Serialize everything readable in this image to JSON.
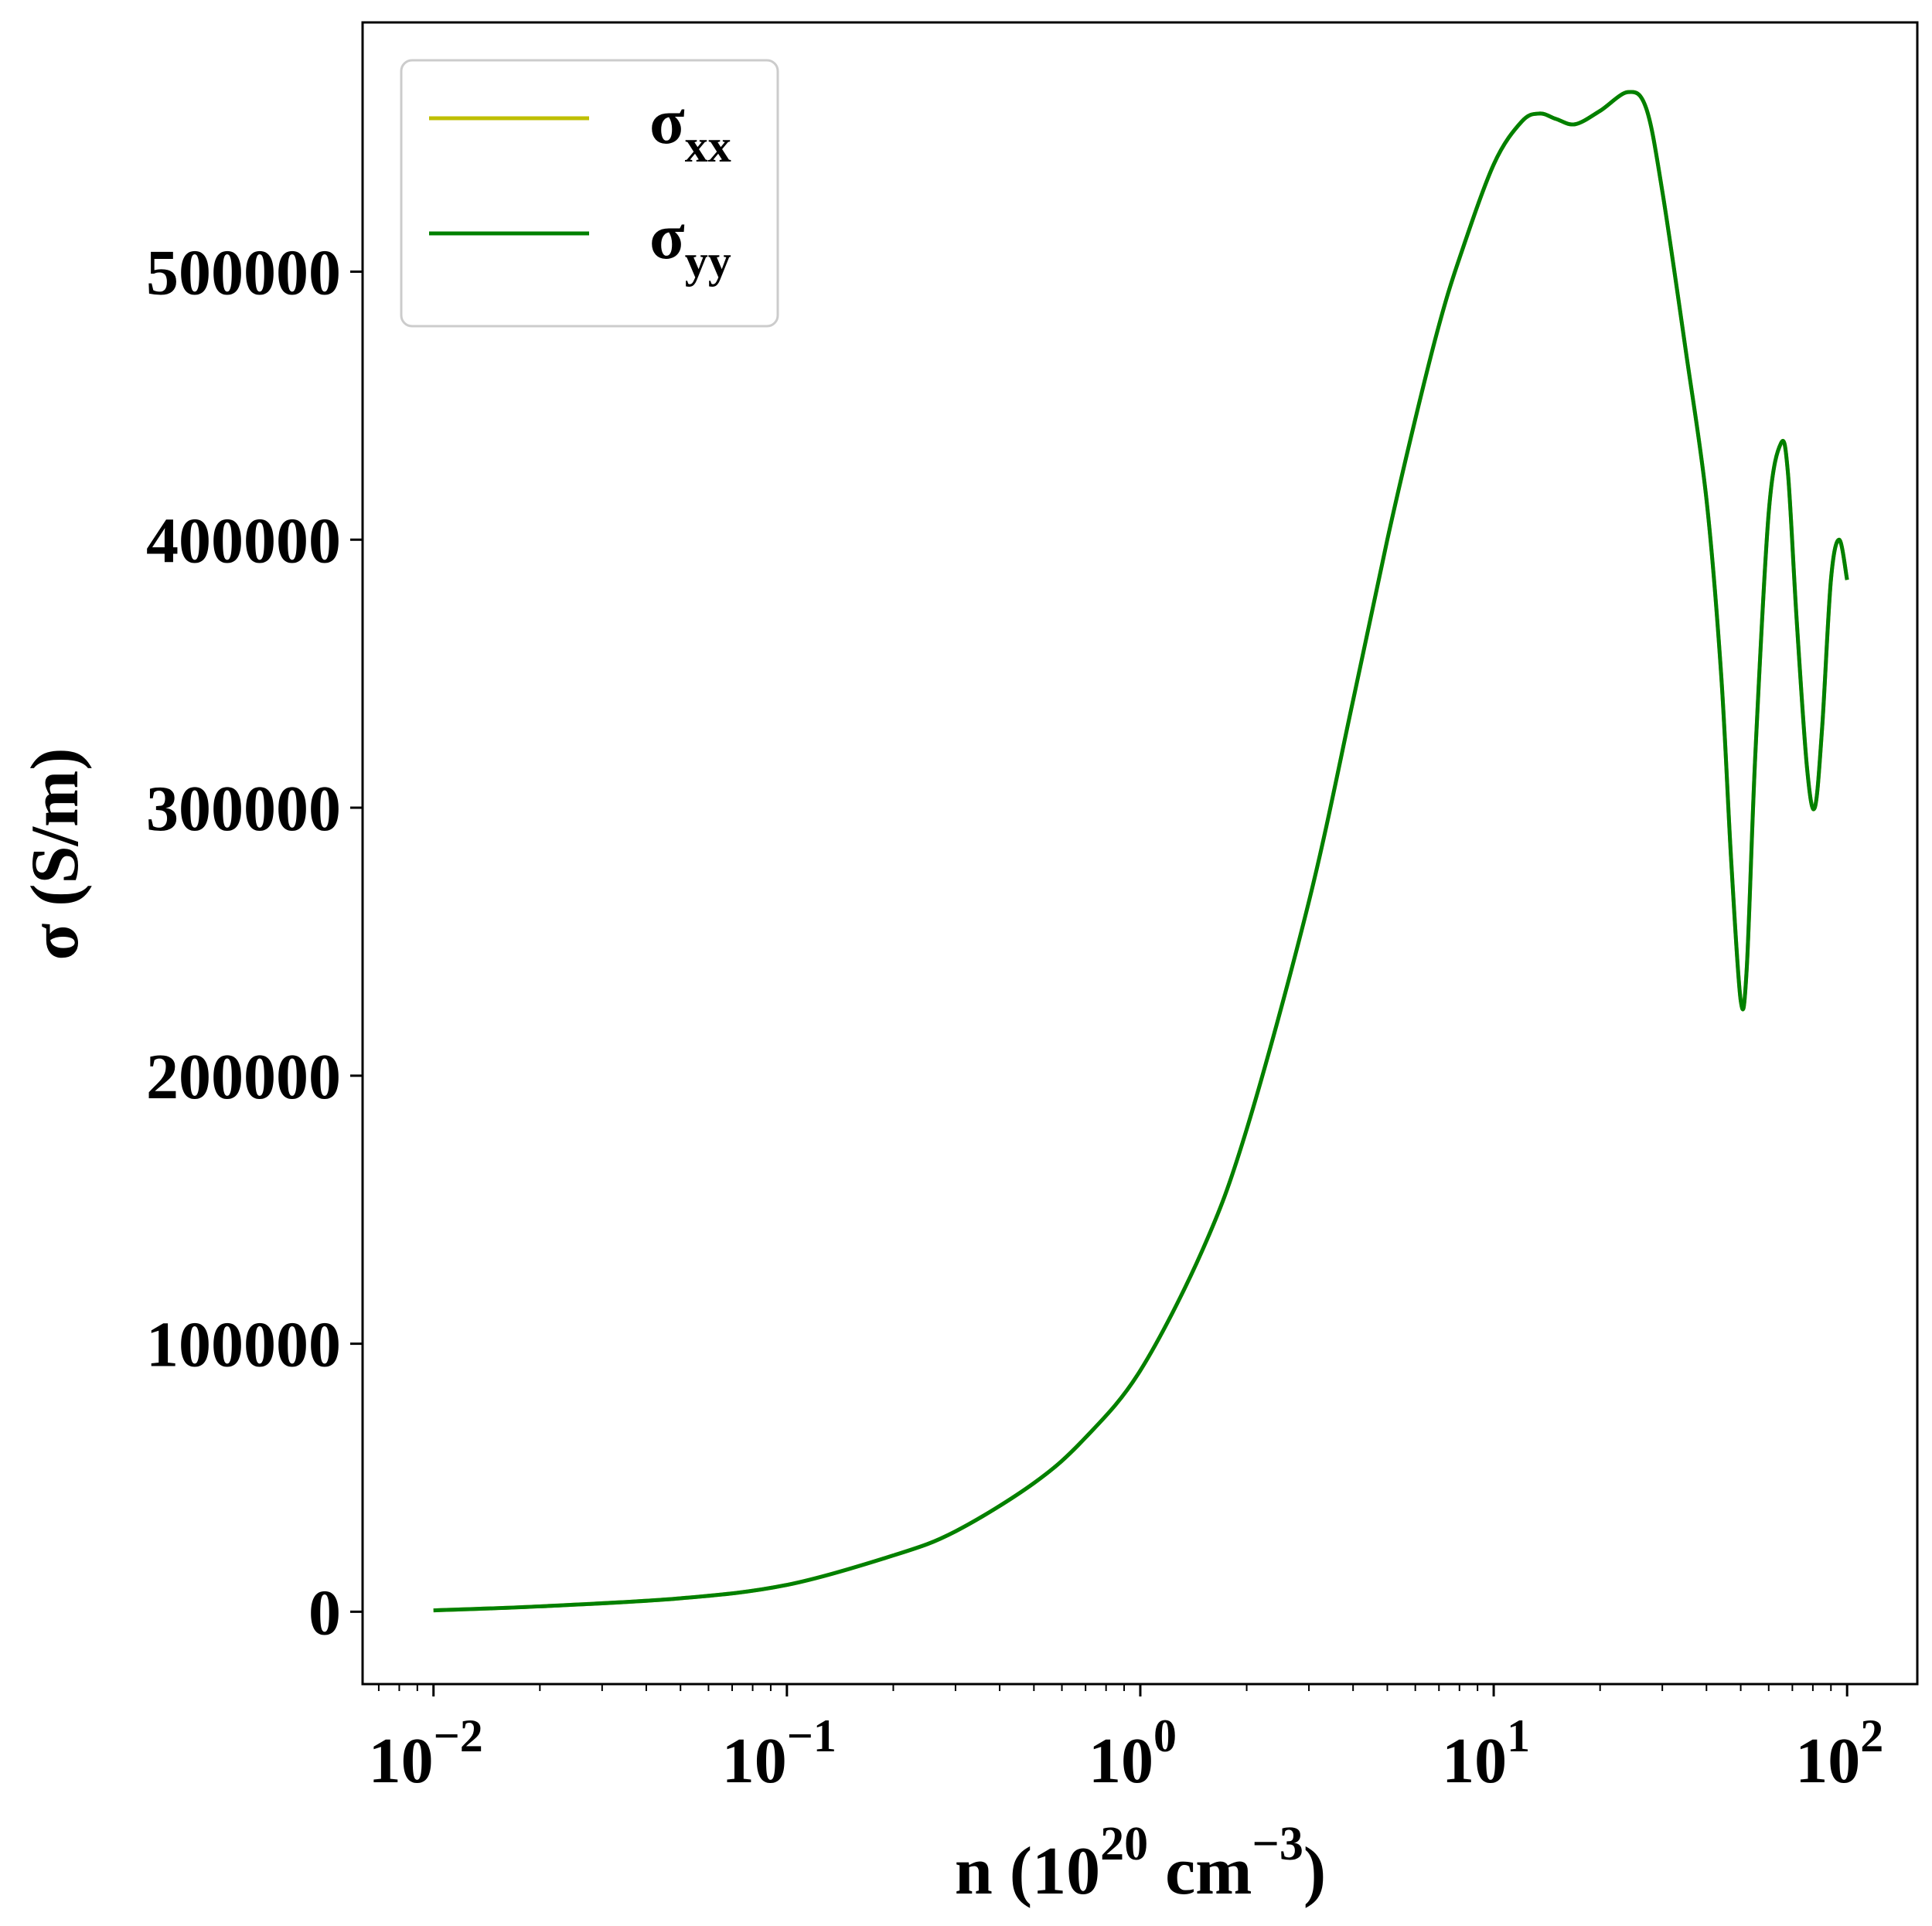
{
  "chart_data": {
    "type": "line",
    "x_scale": "log",
    "xlim": [
      0.0063,
      158
    ],
    "ylim": [
      -27000,
      593000
    ],
    "grid": false,
    "legend_position": "top-left",
    "xlabel": {
      "main": "n (10",
      "sup1": "20",
      "mid": " cm",
      "sup2": "−3",
      "end": ")"
    },
    "ylabel": "σ (S/m)",
    "x_ticks": [
      {
        "value": 0.01,
        "base": "10",
        "exp": "−2"
      },
      {
        "value": 0.1,
        "base": "10",
        "exp": "−1"
      },
      {
        "value": 1,
        "base": "10",
        "exp": "0"
      },
      {
        "value": 10,
        "base": "10",
        "exp": "1"
      },
      {
        "value": 100,
        "base": "10",
        "exp": "2"
      }
    ],
    "y_ticks": [
      {
        "value": 0,
        "label": "0"
      },
      {
        "value": 100000,
        "label": "100000"
      },
      {
        "value": 200000,
        "label": "200000"
      },
      {
        "value": 300000,
        "label": "300000"
      },
      {
        "value": 400000,
        "label": "400000"
      },
      {
        "value": 500000,
        "label": "500000"
      }
    ],
    "series": [
      {
        "name": "σxx",
        "legend_main": "σ",
        "legend_sub": "xx",
        "color": "#bfbf00",
        "x": [
          0.01,
          0.02,
          0.05,
          0.1,
          0.2,
          0.3,
          0.5,
          0.7,
          1.0,
          1.5,
          2.0,
          3.0,
          4.0,
          5.0,
          6.0,
          7.0,
          8.0,
          10.0,
          12.0,
          13.5,
          15.0,
          17.0,
          20.0,
          24.0,
          27.0,
          30.0,
          35.0,
          40.0,
          44.0,
          47.0,
          50.0,
          52.0,
          55.0,
          60.0,
          65.0,
          68.0,
          72.0,
          77.0,
          81.0,
          85.0,
          90.0,
          95.0,
          100.0
        ],
        "values": [
          500,
          2000,
          5000,
          10000,
          21000,
          30000,
          48000,
          65000,
          90000,
          135000,
          180000,
          265000,
          340000,
          400000,
          445000,
          480000,
          505000,
          540000,
          556000,
          559000,
          557000,
          555000,
          560000,
          567000,
          561000,
          530000,
          470000,
          415000,
          350000,
          280000,
          228000,
          240000,
          320000,
          410000,
          436000,
          425000,
          370000,
          315000,
          300000,
          330000,
          385000,
          400000,
          385000
        ]
      },
      {
        "name": "σyy",
        "legend_main": "σ",
        "legend_sub": "yy",
        "color": "#008000",
        "x": [
          0.01,
          0.02,
          0.05,
          0.1,
          0.2,
          0.3,
          0.5,
          0.7,
          1.0,
          1.5,
          2.0,
          3.0,
          4.0,
          5.0,
          6.0,
          7.0,
          8.0,
          10.0,
          12.0,
          13.5,
          15.0,
          17.0,
          20.0,
          24.0,
          27.0,
          30.0,
          35.0,
          40.0,
          44.0,
          47.0,
          50.0,
          52.0,
          55.0,
          60.0,
          65.0,
          68.0,
          72.0,
          77.0,
          81.0,
          85.0,
          90.0,
          95.0,
          100.0
        ],
        "values": [
          500,
          2000,
          5000,
          10000,
          21000,
          30000,
          48000,
          65000,
          90000,
          135000,
          180000,
          265000,
          340000,
          400000,
          445000,
          480000,
          505000,
          540000,
          556000,
          559000,
          557000,
          555000,
          560000,
          567000,
          561000,
          530000,
          470000,
          415000,
          350000,
          280000,
          228000,
          240000,
          320000,
          410000,
          436000,
          425000,
          370000,
          315000,
          300000,
          330000,
          385000,
          400000,
          385000
        ]
      }
    ]
  }
}
